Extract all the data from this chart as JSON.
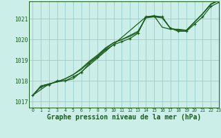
{
  "background_color": "#cceee8",
  "grid_color": "#99cccc",
  "line_color": "#1a5c1a",
  "xlabel": "Graphe pression niveau de la mer (hPa)",
  "xlabel_fontsize": 7.0,
  "xlim": [
    -0.5,
    23
  ],
  "ylim": [
    1016.7,
    1021.85
  ],
  "yticks": [
    1017,
    1018,
    1019,
    1020,
    1021
  ],
  "xticks": [
    0,
    1,
    2,
    3,
    4,
    5,
    6,
    7,
    8,
    9,
    10,
    11,
    12,
    13,
    14,
    15,
    16,
    17,
    18,
    19,
    20,
    21,
    22,
    23
  ],
  "series": [
    {
      "x": [
        0,
        1,
        2,
        3,
        4,
        5,
        6,
        7,
        8,
        9,
        10,
        11,
        12,
        13,
        14,
        15,
        16,
        17,
        18,
        19,
        20,
        21,
        22,
        23
      ],
      "y": [
        1017.3,
        1017.7,
        1017.8,
        1018.0,
        1018.0,
        1018.2,
        1018.4,
        1018.85,
        1019.15,
        1019.5,
        1019.75,
        1019.9,
        1020.05,
        1020.3,
        1021.1,
        1021.15,
        1021.1,
        1020.55,
        1020.4,
        1020.4,
        1020.75,
        1021.1,
        1021.6,
        1021.8
      ],
      "has_markers": true
    },
    {
      "x": [
        0,
        1,
        2,
        3,
        4,
        5,
        6,
        7,
        8,
        9,
        10,
        11,
        12,
        13,
        14,
        15,
        16,
        17,
        18,
        19,
        20,
        21,
        22,
        23
      ],
      "y": [
        1017.3,
        1017.75,
        1017.85,
        1017.95,
        1018.1,
        1018.3,
        1018.55,
        1018.9,
        1019.2,
        1019.55,
        1019.85,
        1020.0,
        1020.15,
        1020.35,
        1021.1,
        1021.1,
        1021.1,
        1020.55,
        1020.45,
        1020.45,
        1020.85,
        1021.25,
        1021.7,
        1021.9
      ],
      "has_markers": false
    },
    {
      "x": [
        0,
        1,
        2,
        3,
        4,
        5,
        6,
        7,
        8,
        9,
        10,
        11,
        12,
        13,
        14,
        15,
        16,
        17,
        18,
        19,
        20,
        21,
        22,
        23
      ],
      "y": [
        1017.3,
        1017.75,
        1017.85,
        1017.95,
        1018.1,
        1018.3,
        1018.6,
        1018.95,
        1019.25,
        1019.6,
        1019.85,
        1020.0,
        1020.2,
        1020.4,
        1021.05,
        1021.1,
        1021.05,
        1020.55,
        1020.45,
        1020.45,
        1020.85,
        1021.25,
        1021.7,
        1021.9
      ],
      "has_markers": false
    },
    {
      "x": [
        0,
        2,
        3,
        4,
        5,
        14,
        15,
        16,
        17,
        18,
        19,
        20,
        21,
        22,
        23
      ],
      "y": [
        1017.3,
        1017.85,
        1017.95,
        1018.0,
        1018.1,
        1021.1,
        1021.15,
        1020.6,
        1020.5,
        1020.5,
        1020.45,
        1020.85,
        1021.25,
        1021.72,
        1021.92
      ],
      "has_markers": false
    }
  ],
  "marker_size": 2.5,
  "line_width": 0.9
}
